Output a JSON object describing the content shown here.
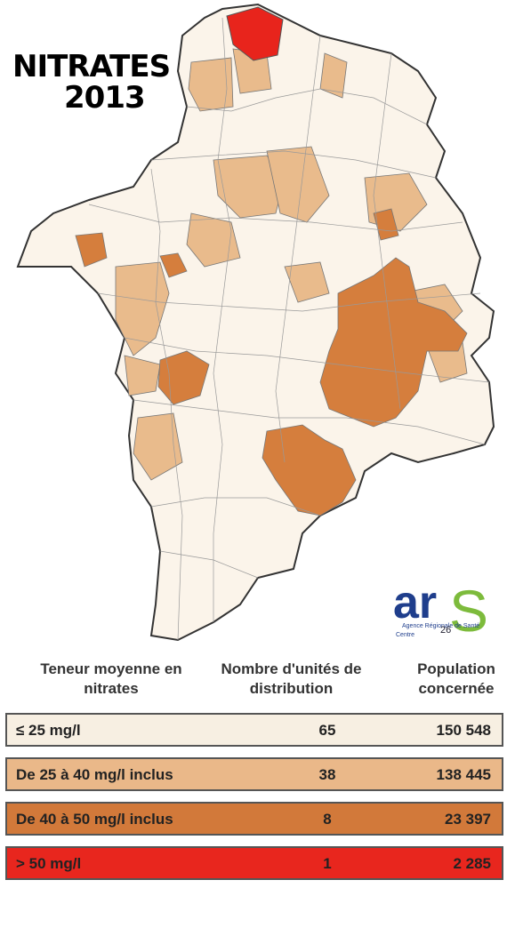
{
  "title": {
    "line1": "NITRATES",
    "line2": "2013"
  },
  "logo": {
    "brand": "ar",
    "brand_s": "S",
    "agency": "Agence Régionale de Santé",
    "region": "Centre",
    "page": "26"
  },
  "table": {
    "headers": [
      "Teneur moyenne en nitrates",
      "Nombre d'unités de distribution",
      "Population concernée"
    ],
    "rows": [
      {
        "class": "≤ 25 mg/l",
        "units": 65,
        "population": "150 548"
      },
      {
        "class": "De 25 à 40 mg/l inclus",
        "units": 38,
        "population": "138 445"
      },
      {
        "class": "De 40 à 50 mg/l inclus",
        "units": 8,
        "population": "23 397"
      },
      {
        "class": "> 50 mg/l",
        "units": 1,
        "population": "2 285"
      }
    ]
  }
}
